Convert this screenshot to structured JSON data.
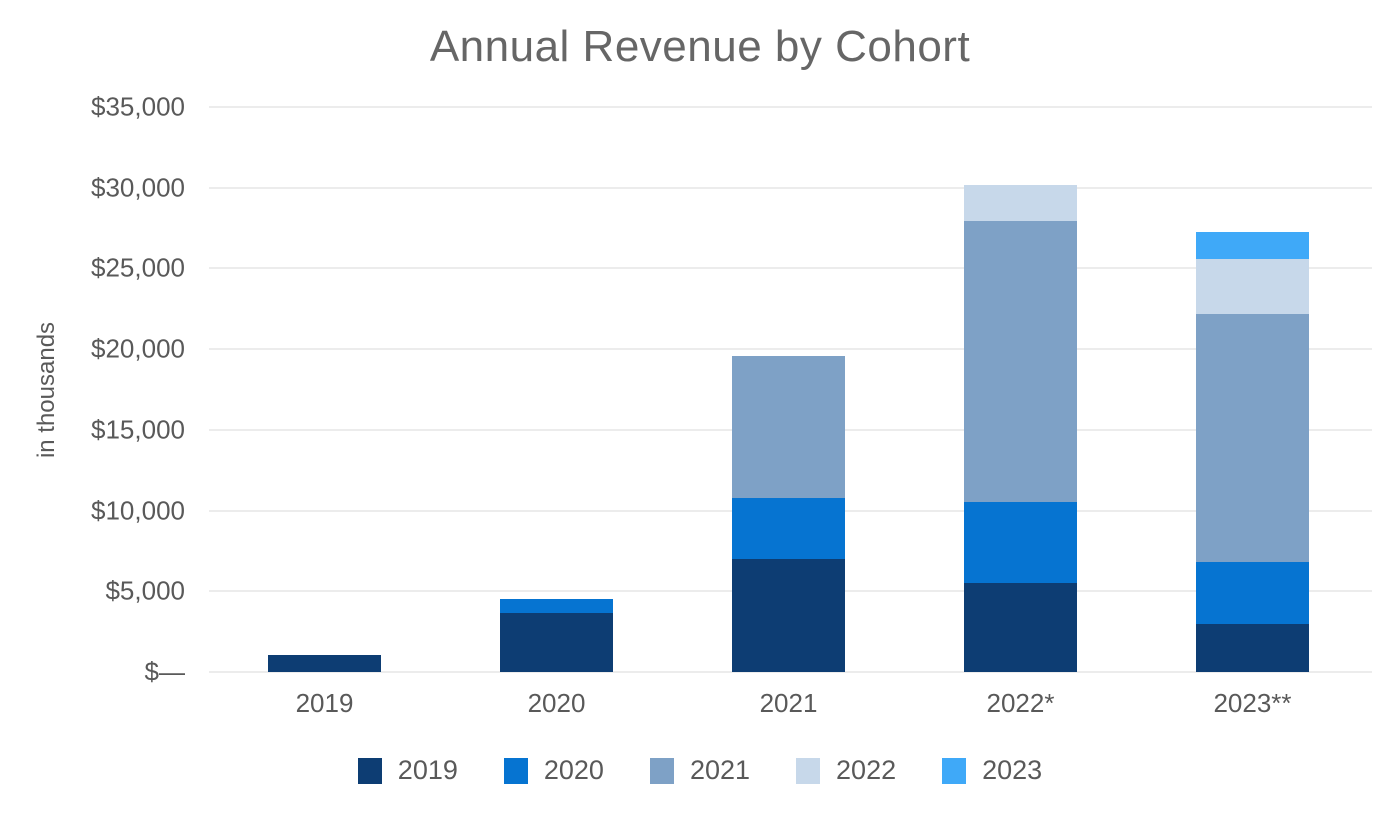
{
  "title": "Annual Revenue by Cohort",
  "y_axis_title": "in thousands",
  "colors": {
    "cohort_2019": "#0D3D73",
    "cohort_2020": "#0674D1",
    "cohort_2021": "#7EA1C6",
    "cohort_2022": "#C7D8EA",
    "cohort_2023": "#3FA9F8",
    "grid": "#ECECEC",
    "text": "#595959",
    "title_text": "#666666"
  },
  "chart_data": {
    "type": "bar",
    "stacked": true,
    "title": "Annual Revenue by Cohort",
    "xlabel": "",
    "ylabel": "in thousands",
    "ylim": [
      0,
      35000
    ],
    "grid": "horizontal",
    "legend_position": "bottom",
    "categories": [
      "2019",
      "2020",
      "2021",
      "2022*",
      "2023**"
    ],
    "series": [
      {
        "name": "2019",
        "color": "#0D3D73",
        "values": [
          1050,
          3650,
          7000,
          5500,
          3000
        ]
      },
      {
        "name": "2020",
        "color": "#0674D1",
        "values": [
          0,
          900,
          3750,
          5050,
          3800
        ]
      },
      {
        "name": "2021",
        "color": "#7EA1C6",
        "values": [
          0,
          0,
          8800,
          17400,
          15400
        ]
      },
      {
        "name": "2022",
        "color": "#C7D8EA",
        "values": [
          0,
          0,
          0,
          2250,
          3400
        ]
      },
      {
        "name": "2023",
        "color": "#3FA9F8",
        "values": [
          0,
          0,
          0,
          0,
          1650
        ]
      }
    ],
    "bar_totals": [
      1050,
      4550,
      19550,
      30200,
      27250
    ],
    "y_ticks": [
      {
        "value": 35000,
        "label": "$35,000"
      },
      {
        "value": 30000,
        "label": "$30,000"
      },
      {
        "value": 25000,
        "label": "$25,000"
      },
      {
        "value": 20000,
        "label": "$20,000"
      },
      {
        "value": 15000,
        "label": "$15,000"
      },
      {
        "value": 10000,
        "label": "$10,000"
      },
      {
        "value": 5000,
        "label": "$5,000"
      },
      {
        "value": 0,
        "label": "$—"
      }
    ],
    "legend": [
      "2019",
      "2020",
      "2021",
      "2022",
      "2023"
    ]
  }
}
